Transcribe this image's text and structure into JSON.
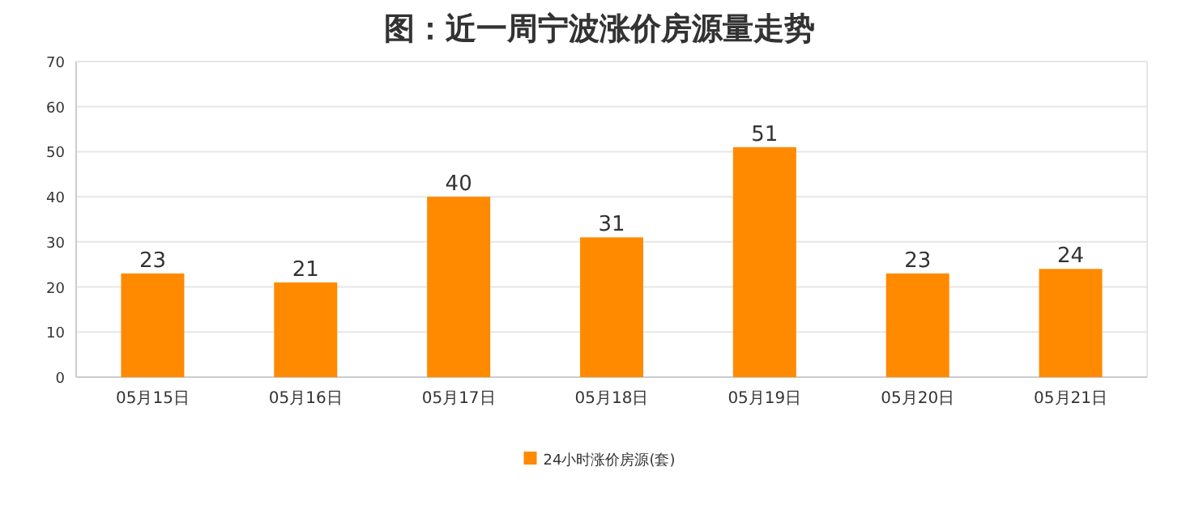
{
  "chart_data": {
    "type": "bar",
    "title": "图：近一周宁波涨价房源量走势",
    "categories": [
      "05月15日",
      "05月16日",
      "05月17日",
      "05月18日",
      "05月19日",
      "05月20日",
      "05月21日"
    ],
    "series": [
      {
        "name": "24小时涨价房源(套)",
        "color": "#ff8a00",
        "values": [
          23,
          21,
          40,
          31,
          51,
          23,
          24
        ]
      }
    ],
    "ylim": [
      0,
      70
    ],
    "yticks": [
      0,
      10,
      20,
      30,
      40,
      50,
      60,
      70
    ],
    "grid": "y",
    "legend": "bottom",
    "data_labels": true
  }
}
